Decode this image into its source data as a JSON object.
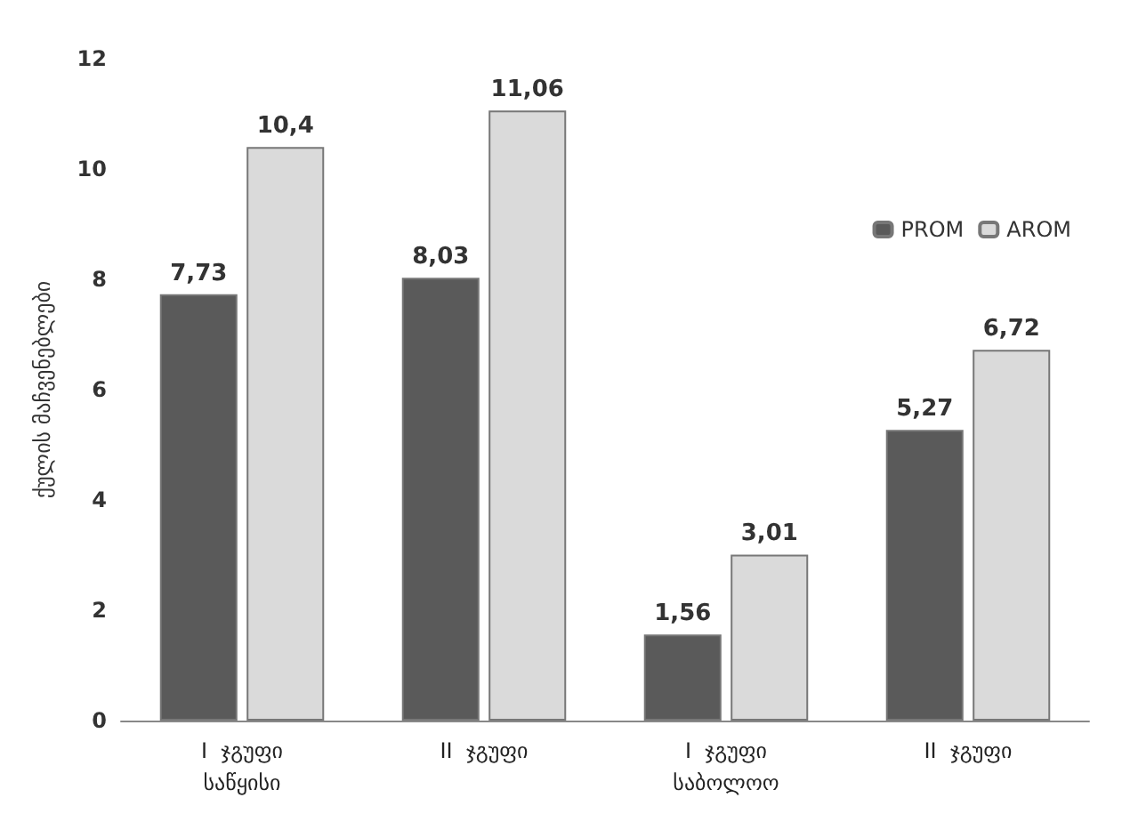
{
  "chart_data": {
    "type": "bar",
    "ylabel": "ქულის მაჩვენებლები",
    "categories": [
      "I  ჯგუფი\nსაწყისი",
      "II  ჯგუფი",
      "I  ჯგუფი\nსაბოლოო",
      "II  ჯგუფი"
    ],
    "series": [
      {
        "name": "PROM",
        "color": "#5a5a5a",
        "values": [
          7.73,
          8.03,
          1.56,
          5.27
        ],
        "value_labels": [
          "7,73",
          "8,03",
          "1,56",
          "5,27"
        ]
      },
      {
        "name": "AROM",
        "color": "#dadada",
        "values": [
          10.4,
          11.06,
          3.01,
          6.72
        ],
        "value_labels": [
          "10,4",
          "11,06",
          "3,01",
          "6,72"
        ]
      }
    ],
    "ylim": [
      0,
      12
    ],
    "yticks": [
      0,
      2,
      4,
      6,
      8,
      10,
      12
    ],
    "grid": false,
    "legend": "top right"
  }
}
